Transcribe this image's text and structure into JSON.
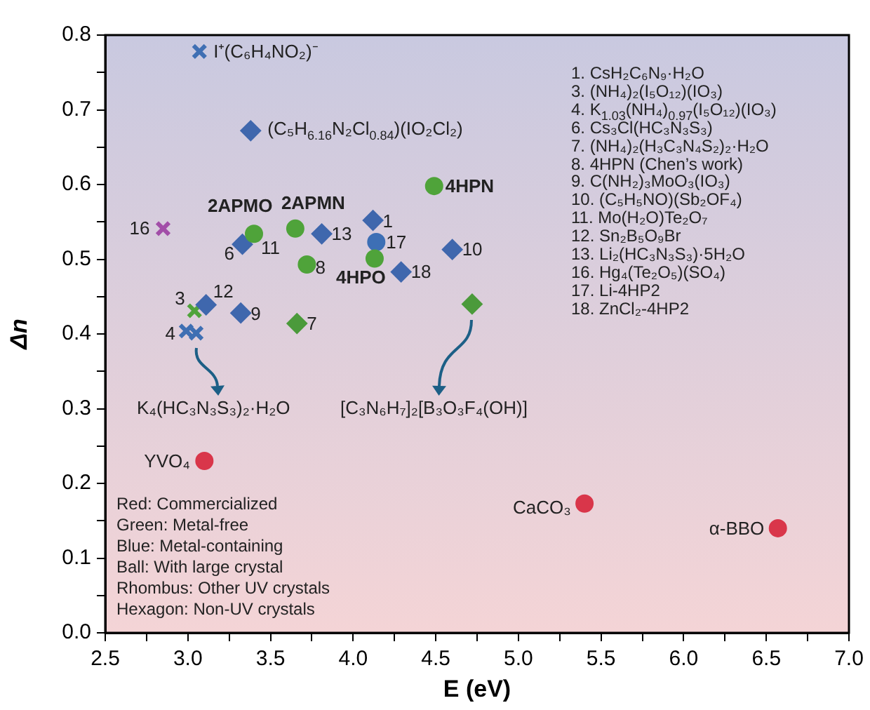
{
  "chart_data": {
    "type": "scatter",
    "xlabel": "E (eV)",
    "ylabel": "Δn",
    "xlim": [
      2.5,
      7.0
    ],
    "ylim": [
      0,
      0.8
    ],
    "xticks": [
      2.5,
      {
        "value": 2.75,
        "label": null
      },
      {
        "value": 3,
        "label": "3.0"
      },
      {
        "value": 3.25,
        "label": null
      },
      3.5,
      {
        "value": 3.75,
        "label": null
      },
      {
        "value": 4,
        "label": "4.0"
      },
      {
        "value": 4.25,
        "label": null
      },
      4.5,
      {
        "value": 4.75,
        "label": null
      },
      {
        "value": 5,
        "label": "5.0"
      },
      {
        "value": 5.25,
        "label": null
      },
      5.5,
      {
        "value": 5.75,
        "label": null
      },
      {
        "value": 6,
        "label": "6.0"
      },
      {
        "value": 6.25,
        "label": null
      },
      6.5,
      {
        "value": 6.75,
        "label": null
      },
      {
        "value": 7,
        "label": "7.0"
      }
    ],
    "yticks": [
      {
        "value": 0,
        "label": "0.0"
      },
      {
        "value": 0.05,
        "label": null
      },
      0.1,
      {
        "value": 0.15,
        "label": null
      },
      0.2,
      {
        "value": 0.25,
        "label": null
      },
      0.3,
      {
        "value": 0.35,
        "label": null
      },
      0.4,
      {
        "value": 0.45,
        "label": null
      },
      0.5,
      {
        "value": 0.55,
        "label": null
      },
      0.6,
      {
        "value": 0.65,
        "label": null
      },
      0.7,
      {
        "value": 0.75,
        "label": null
      },
      0.8
    ],
    "grid": false,
    "legend": false,
    "series": [
      {
        "color": "#d9364a",
        "marker": "circle",
        "x": [
          3.1,
          5.4,
          6.57
        ],
        "values": [
          0.23,
          0.173,
          0.14
        ]
      },
      {
        "color": "#4fa33a",
        "marker": "circle",
        "x": [
          3.4,
          3.65,
          4.49,
          3.72,
          4.13
        ],
        "values": [
          0.534,
          0.541,
          0.598,
          0.493,
          0.501
        ]
      },
      {
        "color": "#3d6fb5",
        "marker": "circle",
        "x": [
          4.14
        ],
        "values": [
          0.523
        ]
      },
      {
        "color": "#3f67ad",
        "marker": "diamond",
        "x": [
          3.38,
          4.12,
          3.81,
          4.6,
          3.33,
          4.29,
          3.11,
          3.32
        ],
        "values": [
          0.672,
          0.552,
          0.534,
          0.513,
          0.52,
          0.483,
          0.439,
          0.428
        ]
      },
      {
        "color": "#4b9a3b",
        "marker": "diamond",
        "x": [
          3.66,
          4.72
        ],
        "values": [
          0.414,
          0.44
        ]
      },
      {
        "color": "#3f6fb3",
        "marker": "cross",
        "x": [
          3.07,
          2.99,
          3.05
        ],
        "values": [
          0.778,
          0.404,
          0.401
        ]
      },
      {
        "color": "#4fa33a",
        "marker": "cross",
        "x": [
          3.04
        ],
        "values": [
          0.431
        ]
      },
      {
        "color": "#a24ea8",
        "marker": "cross",
        "x": [
          2.85
        ],
        "values": [
          0.541
        ]
      }
    ],
    "annotations": [
      {
        "text": "I⁺(C₆H₄NO₂)⁻",
        "x": 3.07,
        "y": 0.778
      },
      {
        "text": "(C₅H$_{6.16}$N₂Cl$_{0.84}$)(IO₂Cl₂)",
        "x": 3.38,
        "y": 0.672
      },
      {
        "text": "4HPN",
        "x": 4.49,
        "y": 0.598
      },
      {
        "text": "2APMO",
        "x": 3.4,
        "y": 0.534
      },
      {
        "text": "2APMN",
        "x": 3.65,
        "y": 0.541
      },
      {
        "text": "16",
        "x": 2.85,
        "y": 0.541
      },
      {
        "text": "6",
        "x": 3.33,
        "y": 0.52
      },
      {
        "text": "11",
        "x": 3.4,
        "y": 0.534
      },
      {
        "text": "13",
        "x": 3.81,
        "y": 0.534
      },
      {
        "text": "1",
        "x": 4.12,
        "y": 0.552
      },
      {
        "text": "17",
        "x": 4.14,
        "y": 0.523
      },
      {
        "text": "10",
        "x": 4.6,
        "y": 0.513
      },
      {
        "text": "8",
        "x": 3.72,
        "y": 0.493
      },
      {
        "text": "4HPO",
        "x": 4.13,
        "y": 0.501
      },
      {
        "text": "18",
        "x": 4.29,
        "y": 0.483
      },
      {
        "text": "12",
        "x": 3.11,
        "y": 0.439
      },
      {
        "text": "3",
        "x": 3.04,
        "y": 0.431
      },
      {
        "text": "9",
        "x": 3.32,
        "y": 0.428
      },
      {
        "text": "7",
        "x": 3.66,
        "y": 0.414
      },
      {
        "text": "4",
        "x": 2.99,
        "y": 0.404
      },
      {
        "text": "YVO₄",
        "x": 3.1,
        "y": 0.23
      },
      {
        "text": "CaCO₃",
        "x": 5.4,
        "y": 0.173
      },
      {
        "text": "α-BBO",
        "x": 6.57,
        "y": 0.14
      },
      "K₄(HC₃N₃S₃)₂·H₂O",
      "[C₃N₆H₇]₂[B₃O₃F₄(OH)]",
      "1. CsH₂C₆N₉·H₂O",
      "3. (NH₄)₂(I₅O₁₂)(IO₃)",
      "4. K$_{1.03}$(NH₄)$_{0.97}$(I₅O₁₂)(IO₃)",
      "6. Cs₃Cl(HC₃N₃S₃)",
      "7. (NH₄)₂(H₃C₃N₄S₂)₂·H₂O",
      "8. 4HPN (Chen’s work)",
      "9. C(NH₂)₃MoO₃(IO₃)",
      "10. (C₅H₅NO)(Sb₂OF₄)",
      "11. Mo(H₂O)Te₂O₇",
      "12. Sn₂B₅O₉Br",
      "13. Li₂(HC₃N₃S₃)·5H₂O",
      "16. Hg₄(Te₂O₅)(SO₄)",
      "17. Li-4HP2",
      "18. ZnCl₂-4HP2",
      "Red: Commercialized",
      "Green: Metal-free",
      "Blue: Metal-containing",
      "Ball: With large crystal",
      "Rhombus: Other UV crystals",
      "Hexagon: Non-UV crystals"
    ]
  }
}
